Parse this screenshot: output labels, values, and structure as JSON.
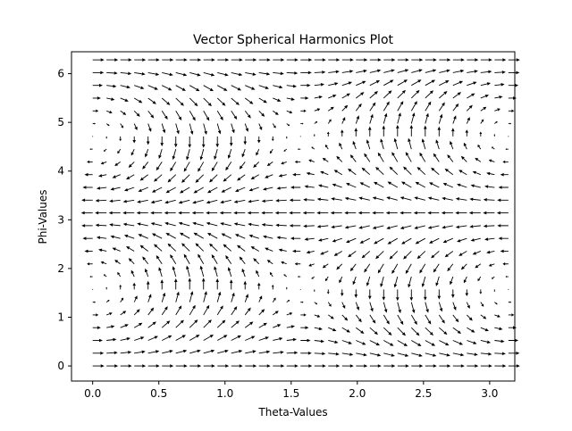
{
  "chart_data": {
    "type": "quiver",
    "title": "Vector Spherical Harmonics Plot",
    "xlabel": "Theta-Values",
    "ylabel": "Phi-Values",
    "xlim": [
      -0.16,
      3.19
    ],
    "ylim": [
      -0.31,
      6.45
    ],
    "x_ticks": [
      0.0,
      0.5,
      1.0,
      1.5,
      2.0,
      2.5,
      3.0
    ],
    "x_tick_labels": [
      "0.0",
      "0.5",
      "1.0",
      "1.5",
      "2.0",
      "2.5",
      "3.0"
    ],
    "y_ticks": [
      0,
      1,
      2,
      3,
      4,
      5,
      6
    ],
    "y_tick_labels": [
      "0",
      "1",
      "2",
      "3",
      "4",
      "5",
      "6"
    ],
    "grid": false,
    "legend": "none",
    "grid_nx": 31,
    "grid_ny": 25,
    "theta_range": [
      0,
      3.1416
    ],
    "phi_range": [
      0,
      6.2832
    ],
    "field": {
      "u": "cos(phi)",
      "v": "sin(phi) * sin(2 * theta)"
    },
    "arrow_color": "#000000"
  }
}
